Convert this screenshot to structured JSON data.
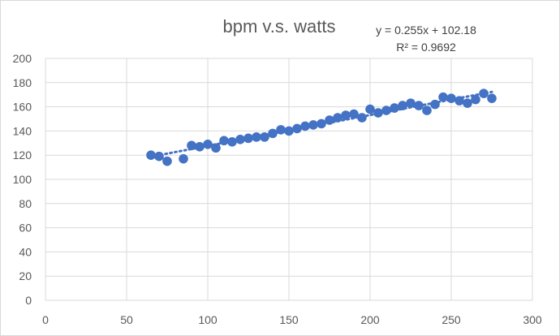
{
  "chart_data": {
    "type": "scatter",
    "title": "bpm v.s. watts",
    "xlabel": "",
    "ylabel": "",
    "xlim": [
      0,
      300
    ],
    "ylim": [
      0,
      200
    ],
    "x_ticks": [
      "0",
      "50",
      "100",
      "150",
      "200",
      "250",
      "300"
    ],
    "y_ticks": [
      "0",
      "20",
      "40",
      "60",
      "80",
      "100",
      "120",
      "140",
      "160",
      "180",
      "200"
    ],
    "grid": true,
    "series": [
      {
        "name": "bpm",
        "color": "#4472c4",
        "x": [
          65,
          70,
          75,
          85,
          90,
          95,
          100,
          105,
          110,
          115,
          120,
          125,
          130,
          135,
          140,
          145,
          150,
          155,
          160,
          165,
          170,
          175,
          180,
          185,
          190,
          195,
          200,
          205,
          210,
          215,
          220,
          225,
          230,
          235,
          240,
          245,
          250,
          255,
          260,
          265,
          270,
          275
        ],
        "y": [
          120,
          119,
          115,
          117,
          128,
          127,
          129,
          126,
          132,
          131,
          133,
          134,
          135,
          135,
          138,
          141,
          140,
          142,
          144,
          145,
          146,
          149,
          151,
          153,
          154,
          151,
          158,
          155,
          157,
          159,
          161,
          163,
          161,
          157,
          162,
          168,
          167,
          165,
          163,
          166,
          171,
          167
        ]
      }
    ],
    "trendline": {
      "type": "linear",
      "style": "dotted",
      "color": "#4472c4",
      "slope": 0.255,
      "intercept": 102.18,
      "equation": "y = 0.255x + 102.18",
      "r_squared": "R² = 0.9692"
    }
  }
}
